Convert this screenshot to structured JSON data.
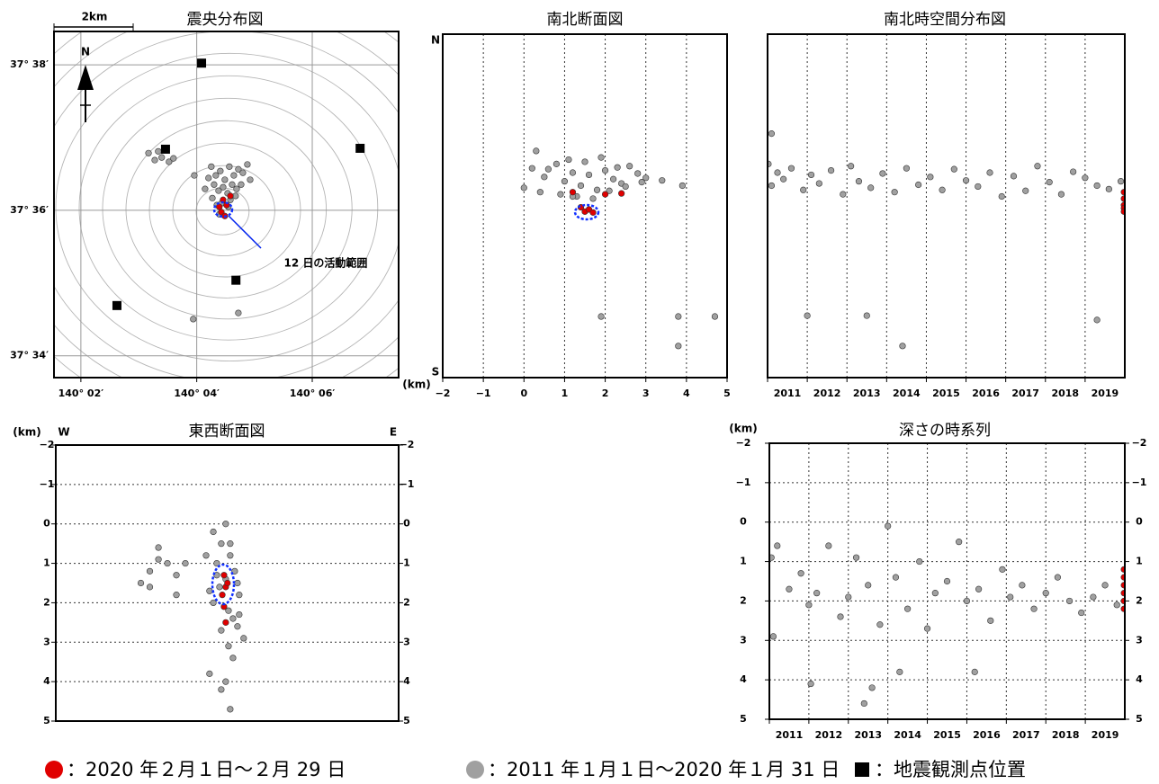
{
  "chart_data": [
    {
      "type": "scatter",
      "title": "震央分布図",
      "scale_label": "2km",
      "north_label": "N",
      "annotation": "12 日の活動範囲",
      "xlim": [
        140.02555,
        140.1249
      ],
      "ylim": [
        37.5617,
        37.64095
      ],
      "xticks": [
        {
          "value": 140.0333,
          "label": "140° 02′"
        },
        {
          "value": 140.0667,
          "label": "140° 04′"
        },
        {
          "value": 140.1,
          "label": "140° 06′"
        }
      ],
      "yticks": [
        {
          "value": 37.6333,
          "label": "37° 38′"
        },
        {
          "value": 37.6,
          "label": "37° 36′"
        },
        {
          "value": 37.5667,
          "label": "37° 34′"
        }
      ],
      "grid": "both",
      "grid_style": "solid",
      "series": [
        {
          "color": "#a0a0a0",
          "marker": "circle",
          "x": [
            140.0709,
            140.0722,
            140.0735,
            140.0748,
            140.0761,
            140.0774,
            140.0787,
            140.08,
            140.0717,
            140.073,
            140.0743,
            140.0756,
            140.0769,
            140.0782,
            140.0712,
            140.0725,
            140.0738,
            140.0764,
            140.0779,
            140.0701,
            140.0795,
            140.0813,
            140.0691,
            140.0758,
            140.0732,
            140.0528,
            140.0546,
            140.0566,
            140.0587,
            140.0556,
            140.06,
            140.0657,
            140.0787,
            140.066,
            140.0821
          ],
          "values": [
            37.61,
            37.608,
            37.609,
            37.607,
            37.61,
            37.608,
            37.6094,
            37.6086,
            37.6059,
            37.6045,
            37.6053,
            37.6039,
            37.6059,
            37.6049,
            37.6028,
            37.6012,
            37.6016,
            37.6024,
            37.6033,
            37.6074,
            37.6059,
            37.6105,
            37.6049,
            37.6008,
            37.5991,
            37.6131,
            37.6115,
            37.6121,
            37.6111,
            37.6135,
            37.6119,
            37.5751,
            37.5765,
            37.608,
            37.607
          ]
        },
        {
          "color": "#e00000",
          "marker": "circle",
          "x": [
            140.0743,
            140.0753,
            140.0738,
            140.0748,
            140.0764,
            140.0732
          ],
          "values": [
            37.6024,
            37.6012,
            37.5996,
            37.5987,
            37.6033,
            37.6008
          ]
        },
        {
          "color": "#000000",
          "marker": "square",
          "x": [
            140.0681,
            140.0577,
            140.1138,
            140.078,
            140.0437
          ],
          "values": [
            37.6337,
            37.614,
            37.6142,
            37.584,
            37.5782
          ]
        }
      ]
    },
    {
      "type": "scatter",
      "title": "南北断面図",
      "top_label": "N",
      "bottom_label": "S",
      "unit_label": "(km)",
      "xlim": [
        -2,
        5
      ],
      "ylim": [
        37.5617,
        37.64095
      ],
      "xticks": [
        {
          "value": -2,
          "label": "−2"
        },
        {
          "value": -1,
          "label": "−1"
        },
        0,
        1,
        2,
        3,
        4,
        5
      ],
      "grid": "x",
      "grid_style": "dotted",
      "series": [
        {
          "color": "#a0a0a0",
          "marker": "circle",
          "x": [
            0.2,
            0.5,
            0.8,
            1.0,
            1.2,
            1.4,
            1.6,
            1.8,
            2.0,
            2.2,
            2.4,
            2.6,
            2.8,
            3.0,
            0.0,
            0.4,
            0.9,
            1.3,
            1.7,
            2.1,
            2.5,
            2.9,
            1.1,
            1.5,
            1.9,
            2.3,
            0.6,
            3.4,
            3.9,
            1.9,
            3.8,
            4.7,
            3.8,
            0.3,
            1.2
          ],
          "values": [
            37.61,
            37.608,
            37.611,
            37.607,
            37.609,
            37.606,
            37.6085,
            37.605,
            37.6095,
            37.6075,
            37.6065,
            37.6105,
            37.6088,
            37.6078,
            37.6055,
            37.6045,
            37.604,
            37.6035,
            37.603,
            37.6048,
            37.6058,
            37.6068,
            37.612,
            37.6115,
            37.6125,
            37.6102,
            37.6098,
            37.6072,
            37.606,
            37.5758,
            37.5758,
            37.5758,
            37.569,
            37.614,
            37.6035
          ]
        },
        {
          "color": "#e00000",
          "marker": "circle",
          "x": [
            1.2,
            1.4,
            1.5,
            1.6,
            1.7,
            2.0,
            2.4
          ],
          "values": [
            37.6045,
            37.601,
            37.6,
            37.6005,
            37.5998,
            37.604,
            37.6042
          ]
        }
      ]
    },
    {
      "type": "scatter",
      "title": "南北時空間分布図",
      "xlim": [
        2011,
        2020
      ],
      "ylim": [
        37.5617,
        37.64095
      ],
      "xticks": [
        2011,
        2012,
        2013,
        2014,
        2015,
        2016,
        2017,
        2018,
        2019
      ],
      "grid": "x",
      "grid_style": "dotted",
      "series": [
        {
          "color": "#a0a0a0",
          "marker": "circle",
          "x": [
            2011.02,
            2011.1,
            2011.25,
            2011.4,
            2011.6,
            2011.9,
            2012.1,
            2012.3,
            2012.6,
            2012.9,
            2013.1,
            2013.3,
            2013.6,
            2013.9,
            2014.2,
            2014.5,
            2014.8,
            2015.1,
            2015.4,
            2015.7,
            2016.0,
            2016.3,
            2016.6,
            2016.9,
            2017.2,
            2017.5,
            2017.8,
            2018.1,
            2018.4,
            2018.7,
            2019.0,
            2019.3,
            2019.6,
            2019.9,
            2011.1,
            2012.0,
            2013.5,
            2014.4,
            2019.3
          ],
          "values": [
            37.611,
            37.606,
            37.609,
            37.6075,
            37.61,
            37.605,
            37.6085,
            37.6065,
            37.6095,
            37.604,
            37.6105,
            37.607,
            37.6055,
            37.6088,
            37.6045,
            37.61,
            37.6062,
            37.608,
            37.605,
            37.6098,
            37.6072,
            37.6058,
            37.609,
            37.6035,
            37.6082,
            37.6048,
            37.6105,
            37.6068,
            37.604,
            37.6092,
            37.6078,
            37.606,
            37.6052,
            37.607,
            37.618,
            37.576,
            37.576,
            37.569,
            37.575
          ]
        },
        {
          "color": "#e00000",
          "marker": "circle",
          "x": [
            2019.98,
            2019.98,
            2019.98,
            2019.98,
            2019.98
          ],
          "values": [
            37.6045,
            37.603,
            37.6015,
            37.6008,
            37.6
          ]
        }
      ]
    },
    {
      "type": "scatter",
      "title": "東西断面図",
      "unit_label": "(km)",
      "left_label": "W",
      "right_label": "E",
      "xlim": [
        140.02555,
        140.1249
      ],
      "ylim": [
        5,
        -2
      ],
      "yticks": [
        {
          "value": -2,
          "label": "−2"
        },
        {
          "value": -1,
          "label": "−1"
        },
        0,
        1,
        2,
        3,
        4,
        5
      ],
      "yticks_both_sides": true,
      "grid": "y",
      "grid_style": "dotted",
      "series": [
        {
          "color": "#a0a0a0",
          "marker": "circle",
          "x": [
            140.0712,
            140.0748,
            140.0735,
            140.0761,
            140.0722,
            140.0774,
            140.0748,
            140.073,
            140.0787,
            140.0712,
            140.0756,
            140.0769,
            140.0782,
            140.0735,
            140.08,
            140.0756,
            140.0769,
            140.0701,
            140.0748,
            140.0735,
            140.0761,
            140.0722,
            140.0782,
            140.0701,
            140.0787,
            140.0502,
            140.0528,
            140.0553,
            140.0579,
            140.0605,
            140.0631,
            140.0553,
            140.0528,
            140.0691,
            140.0761,
            140.0605
          ],
          "values": [
            0.2,
            0.0,
            0.5,
            0.8,
            1.0,
            1.2,
            1.4,
            1.6,
            1.8,
            2.0,
            2.2,
            2.4,
            2.6,
            2.7,
            2.9,
            3.1,
            3.4,
            3.8,
            4.0,
            4.2,
            4.7,
            1.3,
            1.5,
            1.7,
            2.3,
            1.5,
            1.2,
            0.6,
            1.0,
            1.8,
            1.0,
            0.9,
            1.6,
            0.8,
            0.5,
            1.3
          ]
        },
        {
          "color": "#e00000",
          "marker": "circle",
          "x": [
            140.0743,
            140.0748,
            140.0738,
            140.0753,
            140.0743,
            140.0748
          ],
          "values": [
            1.3,
            1.6,
            1.8,
            1.5,
            2.1,
            2.5
          ]
        }
      ]
    },
    {
      "type": "scatter",
      "title": "深さの時系列",
      "unit_label": "(km)",
      "xlim": [
        2011,
        2020
      ],
      "ylim": [
        5,
        -2
      ],
      "xticks": [
        2011,
        2012,
        2013,
        2014,
        2015,
        2016,
        2017,
        2018,
        2019
      ],
      "yticks": [
        {
          "value": -2,
          "label": "−2"
        },
        {
          "value": -1,
          "label": "−1"
        },
        0,
        1,
        2,
        3,
        4,
        5
      ],
      "yticks_both_sides": true,
      "grid": "both",
      "grid_style": "dotted",
      "series": [
        {
          "color": "#a0a0a0",
          "marker": "circle",
          "x": [
            2011.05,
            2011.2,
            2011.5,
            2011.8,
            2012.0,
            2012.2,
            2012.5,
            2012.8,
            2013.0,
            2013.2,
            2013.5,
            2013.8,
            2014.0,
            2014.2,
            2014.5,
            2014.8,
            2015.0,
            2015.2,
            2015.5,
            2015.8,
            2016.0,
            2016.3,
            2016.6,
            2016.9,
            2017.1,
            2017.4,
            2017.7,
            2018.0,
            2018.3,
            2018.6,
            2018.9,
            2019.2,
            2019.5,
            2019.8,
            2011.1,
            2012.05,
            2013.4,
            2013.6,
            2016.2,
            2014.3
          ],
          "values": [
            0.9,
            0.6,
            1.7,
            1.3,
            2.1,
            1.8,
            0.6,
            2.4,
            1.9,
            0.9,
            1.6,
            2.6,
            0.1,
            1.4,
            2.2,
            1.0,
            2.7,
            1.8,
            1.5,
            0.5,
            2.0,
            1.7,
            2.5,
            1.2,
            1.9,
            1.6,
            2.2,
            1.8,
            1.4,
            2.0,
            2.3,
            1.9,
            1.6,
            2.1,
            2.9,
            4.1,
            4.6,
            4.2,
            3.8,
            3.8
          ]
        },
        {
          "color": "#e00000",
          "marker": "circle",
          "x": [
            2019.98,
            2019.98,
            2019.98,
            2019.98,
            2019.98,
            2019.98
          ],
          "values": [
            1.2,
            1.4,
            1.6,
            1.8,
            2.0,
            2.2
          ]
        }
      ]
    }
  ],
  "legend": [
    {
      "label": "：2020 年２月１日～２月 29 日",
      "color": "#e00000",
      "marker": "circle"
    },
    {
      "label": "：2011 年１月１日～2020 年１月 31 日",
      "color": "#a0a0a0",
      "marker": "circle"
    },
    {
      "label": "：地震観測点位置",
      "color": "#000000",
      "marker": "square"
    }
  ]
}
